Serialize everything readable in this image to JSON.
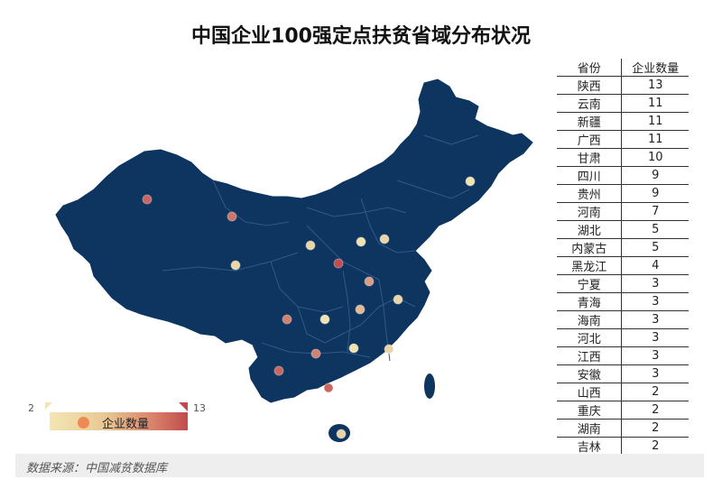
{
  "title": "中国企业100强定点扶贫省域分布状况",
  "colors": {
    "map_fill": "#0d3560",
    "map_border": "#2f5a87",
    "low": "#efe3b0",
    "high": "#c24a4d"
  },
  "legend": {
    "min_label": "2",
    "max_label": "13",
    "label": "企业数量"
  },
  "table": {
    "headers": [
      "省份",
      "企业数量"
    ],
    "rows": [
      {
        "province": "陕西",
        "count": "13"
      },
      {
        "province": "云南",
        "count": "11"
      },
      {
        "province": "新疆",
        "count": "11"
      },
      {
        "province": "广西",
        "count": "11"
      },
      {
        "province": "甘肃",
        "count": "10"
      },
      {
        "province": "四川",
        "count": "9"
      },
      {
        "province": "贵州",
        "count": "9"
      },
      {
        "province": "河南",
        "count": "7"
      },
      {
        "province": "湖北",
        "count": "5"
      },
      {
        "province": "内蒙古",
        "count": "5"
      },
      {
        "province": "黑龙江",
        "count": "4"
      },
      {
        "province": "宁夏",
        "count": "3"
      },
      {
        "province": "青海",
        "count": "3"
      },
      {
        "province": "海南",
        "count": "3"
      },
      {
        "province": "河北",
        "count": "3"
      },
      {
        "province": "江西",
        "count": "3"
      },
      {
        "province": "安徽",
        "count": "3"
      },
      {
        "province": "山西",
        "count": "2"
      },
      {
        "province": "重庆",
        "count": "2"
      },
      {
        "province": "湖南",
        "count": "2"
      },
      {
        "province": "吉林",
        "count": "2"
      }
    ]
  },
  "source": "数据来源：中国减贫数据库",
  "map_points": [
    {
      "province": "新疆",
      "value": 11
    },
    {
      "province": "甘肃",
      "value": 10
    },
    {
      "province": "青海",
      "value": 3
    },
    {
      "province": "宁夏",
      "value": 3
    },
    {
      "province": "陕西",
      "value": 13
    },
    {
      "province": "山西",
      "value": 2
    },
    {
      "province": "河北",
      "value": 3
    },
    {
      "province": "河南",
      "value": 7
    },
    {
      "province": "安徽",
      "value": 3
    },
    {
      "province": "湖北",
      "value": 5
    },
    {
      "province": "四川",
      "value": 9
    },
    {
      "province": "重庆",
      "value": 2
    },
    {
      "province": "贵州",
      "value": 9
    },
    {
      "province": "湖南",
      "value": 2
    },
    {
      "province": "江西",
      "value": 3
    },
    {
      "province": "云南",
      "value": 11
    },
    {
      "province": "广西",
      "value": 11
    },
    {
      "province": "海南",
      "value": 3
    },
    {
      "province": "吉林",
      "value": 2
    }
  ]
}
